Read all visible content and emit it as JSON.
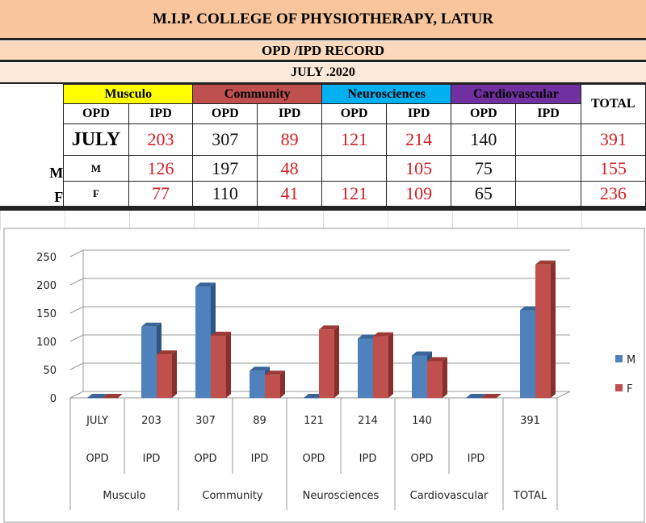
{
  "title": "M.I.P. COLLEGE OF PHYSIOTHERAPY, LATUR",
  "subtitle": "OPD /IPD RECORD",
  "period": "JULY .2020",
  "table": {
    "categories": [
      {
        "label": "Musculo",
        "color": "#ffff00"
      },
      {
        "label": "Community",
        "color": "#c0504d"
      },
      {
        "label": "Neurosciences",
        "color": "#00b0f0"
      },
      {
        "label": "Cardiovascular",
        "color": "#7030a0"
      }
    ],
    "total_label": "TOTAL",
    "sub": [
      "OPD",
      "IPD",
      "OPD",
      "IPD",
      "OPD",
      "IPD",
      "OPD",
      "IPD"
    ],
    "rows": [
      {
        "rowlabel": "",
        "first": "JULY",
        "cells": [
          "203",
          "307",
          "89",
          "121",
          "214",
          "140",
          "",
          "391"
        ]
      },
      {
        "rowlabel": "M",
        "first": "M",
        "cells": [
          "126",
          "197",
          "48",
          "",
          "105",
          "75",
          "",
          "155"
        ]
      },
      {
        "rowlabel": "F",
        "first": "F",
        "cells": [
          "77",
          "110",
          "41",
          "121",
          "109",
          "65",
          "",
          "236"
        ]
      }
    ]
  },
  "chart_data": {
    "type": "bar",
    "categories": [
      "JULY",
      "203",
      "307",
      "89",
      "121",
      "214",
      "140",
      "",
      "391"
    ],
    "category_sublabels": [
      "OPD",
      "IPD",
      "OPD",
      "IPD",
      "OPD",
      "IPD",
      "OPD",
      "IPD",
      ""
    ],
    "groups": [
      "Musculo",
      "Community",
      "Neurosciences",
      "Cardiovascular",
      "TOTAL"
    ],
    "series": [
      {
        "name": "M",
        "color": "#4f81bd",
        "values": [
          0,
          126,
          197,
          48,
          0,
          105,
          75,
          0,
          155
        ]
      },
      {
        "name": "F",
        "color": "#c0504d",
        "values": [
          0,
          77,
          110,
          41,
          121,
          109,
          65,
          0,
          236
        ]
      }
    ],
    "yticks": [
      "0",
      "50",
      "100",
      "150",
      "200",
      "250"
    ],
    "ylim": [
      0,
      250
    ],
    "grid": true,
    "legend": "right",
    "style": "3d-clustered-column"
  }
}
